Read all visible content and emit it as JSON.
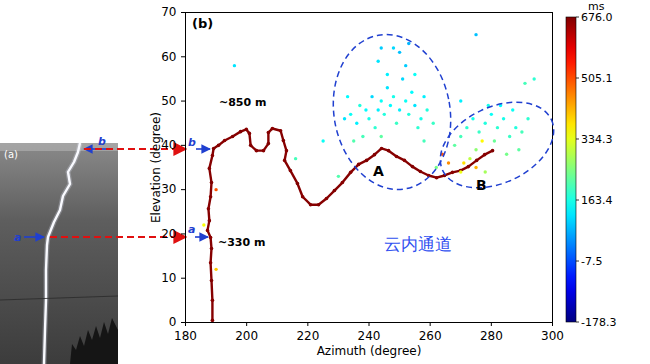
{
  "chart_data": {
    "type": "scatter",
    "xlabel": "Azimuth (degree)",
    "ylabel": "Elevation (degree)",
    "xlim": [
      180,
      300
    ],
    "xticks": [
      180,
      200,
      220,
      240,
      260,
      280,
      300
    ],
    "ylim": [
      0,
      70
    ],
    "yticks": [
      0,
      10,
      20,
      30,
      40,
      50,
      60,
      70
    ],
    "color": "jet",
    "colorbar": {
      "label": "ms",
      "range": [
        -178.3,
        676
      ],
      "ticks": [
        -178.3,
        -7.5,
        163.4,
        334.3,
        505.1,
        {
          "value": 676,
          "label": "676.0"
        }
      ]
    },
    "channel": {
      "type": "line",
      "x": [
        188.8,
        188.8,
        188.5,
        188.2,
        188.5,
        188.2,
        187.2,
        187.8,
        187.5,
        188.2,
        188.5,
        187.8,
        188.8,
        189.2,
        190.8,
        192.8,
        195.4,
        198.0,
        199.9,
        200.9,
        201.3,
        203.2,
        205.5,
        207.1,
        207.1,
        208.4,
        211.1,
        212.0,
        213.0,
        212.4,
        214.3,
        216.6,
        218.3,
        220.9,
        223.5,
        226.1,
        228.7,
        231.3,
        234.0,
        236.6,
        239.2,
        241.8,
        244.1,
        246.4,
        249.0,
        251.6,
        254.2,
        256.8,
        259.5,
        262.1,
        264.7,
        267.3,
        269.9,
        272.5,
        275.2,
        277.8,
        280.4
      ],
      "y": [
        0.5,
        5.0,
        9.5,
        13.5,
        16.7,
        19.2,
        20.8,
        23.0,
        25.7,
        28.4,
        31.6,
        34.8,
        37.7,
        39.3,
        40.0,
        41.1,
        42.0,
        43.1,
        43.6,
        42.7,
        40.0,
        38.8,
        38.8,
        40.4,
        42.9,
        43.8,
        43.3,
        41.1,
        38.8,
        36.6,
        34.3,
        31.4,
        28.4,
        26.6,
        26.6,
        28.0,
        29.8,
        31.6,
        33.9,
        35.7,
        36.6,
        37.9,
        39.3,
        38.8,
        37.5,
        36.6,
        35.2,
        34.1,
        33.2,
        32.7,
        33.2,
        33.9,
        34.3,
        35.2,
        36.6,
        37.9,
        38.8
      ],
      "time": [
        672,
        670,
        674,
        668,
        671,
        665,
        669,
        673,
        667,
        670,
        675,
        671,
        668,
        673,
        670,
        666,
        672,
        674,
        669,
        671,
        673,
        668,
        670,
        675,
        672,
        667,
        671,
        674,
        669,
        670,
        672,
        676,
        668,
        671,
        673,
        669,
        674,
        670,
        667,
        672,
        675,
        671,
        669,
        673,
        670,
        668,
        672,
        674,
        666,
        671,
        673,
        669,
        675,
        670,
        672,
        668,
        676
      ]
    },
    "points": {
      "marker": "dot",
      "x": [
        232,
        234,
        236,
        237,
        239,
        240,
        241,
        242,
        243,
        244,
        245,
        246,
        247,
        248,
        249,
        250,
        251,
        252,
        253,
        254,
        255,
        256,
        257,
        258,
        252,
        250,
        248,
        238,
        235,
        244,
        246,
        243,
        233,
        255,
        259,
        261,
        253,
        244,
        268,
        270,
        272,
        274,
        276,
        278,
        280,
        282,
        284,
        286,
        288,
        290,
        287,
        283,
        279,
        292,
        275,
        273,
        271,
        275,
        270,
        278,
        285,
        289,
        281,
        266,
        264,
        277,
        291,
        294,
        275,
        216,
        230,
        262,
        225,
        196,
        270,
        258,
        190,
        186,
        190
      ],
      "y": [
        46,
        47,
        45,
        49,
        48,
        46,
        51,
        44,
        48,
        50,
        47,
        53,
        49,
        51,
        45,
        48,
        55,
        50,
        47,
        52,
        49,
        44,
        46,
        51,
        58,
        61,
        62,
        42,
        41,
        42,
        56,
        59,
        51,
        56,
        48,
        45,
        63,
        62,
        40,
        42,
        44,
        46,
        43,
        45,
        47,
        44,
        46,
        42,
        44,
        43,
        48,
        49,
        49,
        46,
        39,
        37,
        36,
        35,
        34,
        34,
        38,
        39,
        41,
        36,
        38,
        41,
        54,
        55,
        65,
        37,
        33,
        35,
        41,
        58,
        50,
        41,
        12,
        22,
        30
      ],
      "time": [
        120,
        150,
        130,
        170,
        140,
        160,
        110,
        180,
        130,
        150,
        170,
        120,
        140,
        160,
        190,
        130,
        110,
        150,
        170,
        140,
        120,
        180,
        160,
        130,
        100,
        90,
        110,
        200,
        210,
        220,
        130,
        120,
        140,
        150,
        170,
        190,
        80,
        100,
        220,
        200,
        180,
        160,
        190,
        170,
        150,
        180,
        160,
        190,
        170,
        200,
        150,
        140,
        160,
        180,
        260,
        300,
        380,
        420,
        340,
        280,
        240,
        220,
        230,
        450,
        500,
        360,
        200,
        180,
        90,
        200,
        210,
        240,
        150,
        120,
        130,
        200,
        400,
        350,
        500
      ]
    },
    "annotations": {
      "panel_a": "(a)",
      "panel_b": "(b)",
      "height_upper": "~850 m",
      "height_lower": "~330 m",
      "region_a": "A",
      "region_b": "B",
      "cloud_channel": "云内通道",
      "marker_a": "a",
      "marker_b": "b"
    }
  }
}
